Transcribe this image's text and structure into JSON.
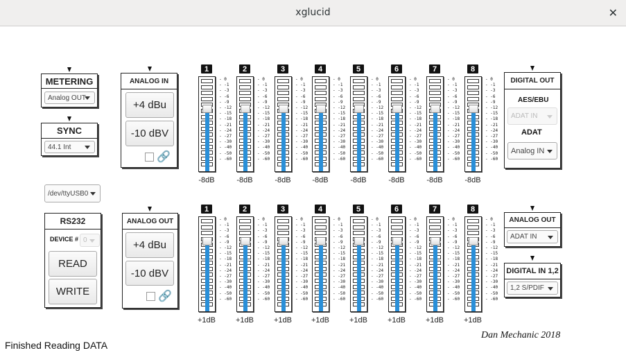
{
  "window": {
    "title": "xglucid",
    "close": "✕"
  },
  "metering": {
    "label": "METERING",
    "value": "Analog OUT"
  },
  "sync": {
    "label": "SYNC",
    "value": "44.1 Int"
  },
  "serial": {
    "port": "/dev/ttyUSB0"
  },
  "rs232": {
    "label": "RS232",
    "device_label": "DEVICE #",
    "device_value": "0",
    "read": "READ",
    "write": "WRITE"
  },
  "analog_in": {
    "label": "ANALOG IN",
    "plus4": "+4 dBu",
    "minus10": "-10 dBV",
    "link_icon": "link-icon"
  },
  "analog_out": {
    "label": "ANALOG OUT",
    "plus4": "+4 dBu",
    "minus10": "-10 dBV",
    "link_icon": "link-icon"
  },
  "digital_out": {
    "label": "DIGITAL OUT",
    "aes_label": "AES/EBU",
    "aes_value": "ADAT IN",
    "adat_label": "ADAT",
    "adat_value": "Analog IN"
  },
  "analog_out_src": {
    "label": "ANALOG OUT",
    "value": "ADAT IN"
  },
  "digital_in": {
    "label": "DIGITAL IN 1,2",
    "value": "1,2 S/PDIF"
  },
  "scale": [
    "0",
    "-1",
    "-3",
    "-6",
    "-9",
    "-12",
    "-15",
    "-18",
    "-21",
    "-24",
    "-27",
    "-30",
    "-40",
    "-50",
    "-60"
  ],
  "input_channels": [
    {
      "num": "1",
      "gain": "-8dB",
      "level": 0.62
    },
    {
      "num": "2",
      "gain": "-8dB",
      "level": 0.62
    },
    {
      "num": "3",
      "gain": "-8dB",
      "level": 0.62
    },
    {
      "num": "4",
      "gain": "-8dB",
      "level": 0.62
    },
    {
      "num": "5",
      "gain": "-8dB",
      "level": 0.62
    },
    {
      "num": "6",
      "gain": "-8dB",
      "level": 0.62
    },
    {
      "num": "7",
      "gain": "-8dB",
      "level": 0.62
    },
    {
      "num": "8",
      "gain": "-8dB",
      "level": 0.62
    }
  ],
  "output_channels": [
    {
      "num": "1",
      "gain": "+1dB",
      "level": 0.7
    },
    {
      "num": "2",
      "gain": "+1dB",
      "level": 0.7
    },
    {
      "num": "3",
      "gain": "+1dB",
      "level": 0.7
    },
    {
      "num": "4",
      "gain": "+1dB",
      "level": 0.7
    },
    {
      "num": "5",
      "gain": "+1dB",
      "level": 0.7
    },
    {
      "num": "6",
      "gain": "+1dB",
      "level": 0.7
    },
    {
      "num": "7",
      "gain": "+1dB",
      "level": 0.7
    },
    {
      "num": "8",
      "gain": "+1dB",
      "level": 0.7
    }
  ],
  "status": "Finished Reading DATA",
  "signature": "Dan Mechanic 2018",
  "colors": {
    "meter": "#2a8fd8"
  }
}
